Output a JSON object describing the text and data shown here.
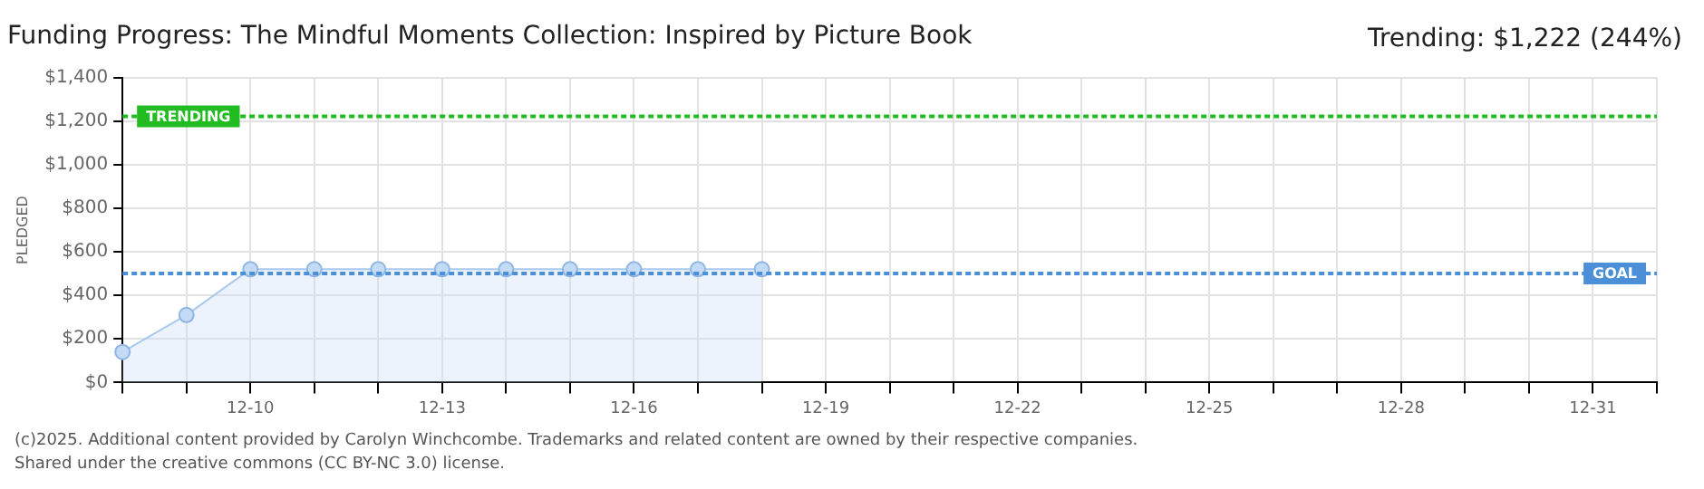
{
  "chart_data": {
    "type": "area",
    "title": "Funding Progress: The Mindful Moments Collection: Inspired by Picture Book",
    "subtitle": "Trending: $1,222 (244%)",
    "ylabel": "PLEDGED",
    "categories": [
      null,
      null,
      "12-10",
      null,
      null,
      "12-13",
      null,
      null,
      "12-16",
      null,
      null,
      "12-19",
      null,
      null,
      "12-22",
      null,
      null,
      "12-25",
      null,
      null,
      "12-28",
      null,
      null,
      "12-31",
      null
    ],
    "series": [
      {
        "color": "#a9c9ef",
        "values": [
          140,
          310,
          520,
          520,
          520,
          520,
          520,
          520,
          520,
          520,
          520,
          null,
          null,
          null,
          null,
          null,
          null,
          null,
          null,
          null,
          null,
          null,
          null,
          null,
          null
        ]
      }
    ],
    "ylim": [
      0,
      1400
    ],
    "yticks": [
      {
        "value": 0,
        "label": "$0"
      },
      {
        "value": 200,
        "label": "$200"
      },
      {
        "value": 400,
        "label": "$400"
      },
      {
        "value": 600,
        "label": "$600"
      },
      {
        "value": 800,
        "label": "$800"
      },
      {
        "value": 1000,
        "label": "$1,000"
      },
      {
        "value": 1200,
        "label": "$1,200"
      },
      {
        "value": 1400,
        "label": "$1,400"
      }
    ],
    "ref_lines": [
      {
        "axis": "y",
        "value": 1222,
        "label": "TRENDING",
        "color": "#22bb22",
        "line_style": "dotted"
      },
      {
        "axis": "y",
        "value": 500,
        "label": "GOAL",
        "color": "#4a8fd8",
        "line_style": "dotted"
      }
    ],
    "grid": true,
    "legend": false,
    "marker": "circle",
    "line_style": "solid",
    "annotations": [
      "(c)2025. Additional content provided by Carolyn Winchcombe. Trademarks and related content are owned by their respective companies.",
      "Shared under the creative commons (CC BY-NC 3.0) license."
    ]
  }
}
